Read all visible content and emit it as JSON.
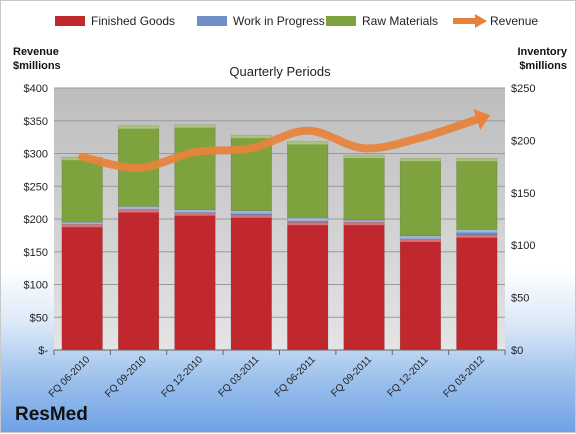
{
  "brand": "ResMed",
  "chart_data": {
    "type": "bar",
    "stacked": true,
    "title": "Quarterly Periods",
    "left_axis_label_line1": "Revenue",
    "left_axis_label_line2": "$millions",
    "right_axis_label_line1": "Inventory",
    "right_axis_label_line2": "$millions",
    "categories": [
      "FQ 06-2010",
      "FQ 09-2010",
      "FQ 12-2010",
      "FQ 03-2011",
      "FQ 06-2011",
      "FQ 09-2011",
      "FQ 12-2011",
      "FQ 03-2012"
    ],
    "left_ylim": [
      0,
      400
    ],
    "left_ticks": [
      0,
      50,
      100,
      150,
      200,
      250,
      300,
      350,
      400
    ],
    "left_tick_labels": [
      "$-",
      "$50",
      "$100",
      "$150",
      "$200",
      "$250",
      "$300",
      "$350",
      "$400"
    ],
    "right_ylim": [
      0,
      250
    ],
    "right_ticks": [
      0,
      50,
      100,
      150,
      200,
      250
    ],
    "right_tick_labels": [
      "$0",
      "$50",
      "$100",
      "$150",
      "$200",
      "$250"
    ],
    "grid": true,
    "legend_position": "top",
    "series": [
      {
        "name": "Finished Goods",
        "axis": "right",
        "kind": "bar",
        "color": "#c0282d",
        "values": [
          120,
          134,
          131,
          129,
          122,
          122,
          106,
          110
        ]
      },
      {
        "name": "Work in Progress",
        "axis": "right",
        "kind": "bar",
        "color": "#6f8fc6",
        "values": [
          2,
          3,
          3,
          4,
          4,
          2,
          3,
          5
        ]
      },
      {
        "name": "Raw Materials",
        "axis": "right",
        "kind": "bar",
        "color": "#7ea23e",
        "values": [
          62,
          77,
          81,
          72,
          73,
          62,
          74,
          68
        ]
      },
      {
        "name": "Revenue",
        "axis": "left",
        "kind": "line",
        "color": "#e8823a",
        "values": [
          295,
          278,
          302,
          308,
          335,
          308,
          324,
          352
        ]
      }
    ]
  }
}
